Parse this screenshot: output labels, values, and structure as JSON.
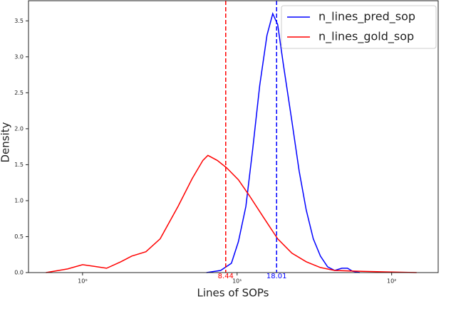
{
  "chart_data": {
    "type": "line",
    "xlabel": "Lines of SOPs",
    "ylabel": "Density",
    "xscale": "log",
    "xlim": [
      0.447,
      200
    ],
    "ylim": [
      0,
      3.78
    ],
    "xticks": [
      {
        "value": 1,
        "label": "10⁰"
      },
      {
        "value": 10,
        "label": "10¹"
      },
      {
        "value": 100,
        "label": "10²"
      }
    ],
    "yticks": [
      {
        "value": 0,
        "label": "0.0"
      },
      0.5,
      {
        "value": 1,
        "label": "1.0"
      },
      1.5,
      {
        "value": 2,
        "label": "2.0"
      },
      2.5,
      {
        "value": 3,
        "label": "3.0"
      },
      3.5
    ],
    "legend": "upper right",
    "series": [
      {
        "name": "n_lines_pred_sop",
        "color": "#0000ff",
        "x": [
          6.34,
          7.83,
          9.19,
          10.2,
          11.4,
          12.6,
          14.0,
          15.6,
          17.0,
          18.3,
          19.9,
          22.6,
          25.2,
          28.0,
          31.1,
          34.6,
          38.5,
          42.8,
          47.6,
          51.8,
          55.8,
          62.1
        ],
        "values": [
          0,
          0.03,
          0.13,
          0.43,
          0.92,
          1.71,
          2.6,
          3.3,
          3.6,
          3.45,
          2.9,
          2.11,
          1.41,
          0.87,
          0.47,
          0.23,
          0.08,
          0.03,
          0.06,
          0.06,
          0.02,
          0
        ]
      },
      {
        "name": "n_lines_gold_sop",
        "color": "#ff0000",
        "x": [
          0.58,
          0.8,
          1,
          1.16,
          1.43,
          1.77,
          2.08,
          2.57,
          3.18,
          4.15,
          5.13,
          6.01,
          6.47,
          7.43,
          8.53,
          10.2,
          12.0,
          14.8,
          18.3,
          22.6,
          28.0,
          34.6,
          42.8,
          58.9,
          89.9,
          145
        ],
        "values": [
          0,
          0.05,
          0.11,
          0.09,
          0.06,
          0.15,
          0.23,
          0.29,
          0.47,
          0.92,
          1.31,
          1.56,
          1.63,
          1.56,
          1.46,
          1.29,
          1.07,
          0.77,
          0.47,
          0.27,
          0.15,
          0.07,
          0.03,
          0.02,
          0.01,
          0
        ]
      }
    ],
    "vlines": [
      {
        "x": 8.44,
        "color": "#ff0000"
      },
      {
        "x": 18.01,
        "color": "#0000ff"
      }
    ]
  }
}
